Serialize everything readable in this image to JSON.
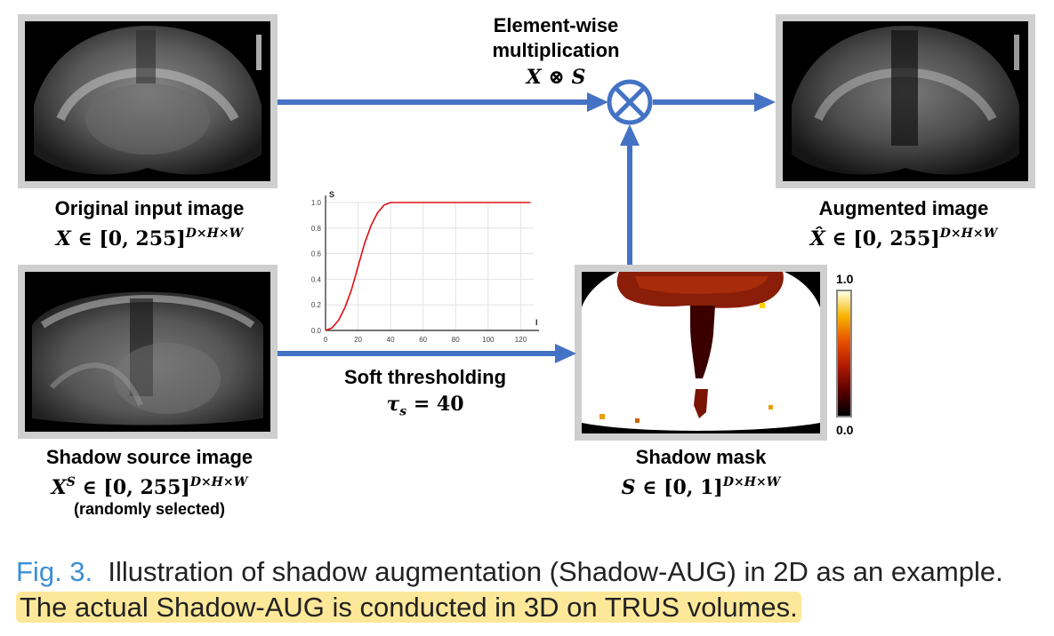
{
  "header": {
    "operation_title_line1": "Element-wise",
    "operation_title_line2": "multiplication",
    "operation_formula": "X ⊗ S"
  },
  "images": {
    "original": {
      "label": "Original input image",
      "formula_var": "X",
      "formula_rest": " ∈ [0, 255]",
      "formula_sup": "D×H×W"
    },
    "augmented": {
      "label": "Augmented image",
      "formula_var": "X̂",
      "formula_rest": " ∈ [0, 255]",
      "formula_sup": "D×H×W"
    },
    "shadow_source": {
      "label": "Shadow source image",
      "formula_var": "X",
      "formula_var_sup": "S",
      "formula_rest": " ∈ [0, 255]",
      "formula_sup": "D×H×W",
      "note": "(randomly selected)"
    },
    "shadow_mask": {
      "label": "Shadow mask",
      "formula_var": "S",
      "formula_rest": " ∈ [0, 1]",
      "formula_sup": "D×H×W"
    }
  },
  "thresholding": {
    "label": "Soft thresholding",
    "formula_var": "τ",
    "formula_sub": "s",
    "formula_rest": " = 40"
  },
  "colorbar": {
    "max_label": "1.0",
    "min_label": "0.0"
  },
  "chart_data": {
    "type": "line",
    "xlabel": "I",
    "ylabel": "S",
    "xlim": [
      0,
      128
    ],
    "ylim": [
      0,
      1.0
    ],
    "x_ticks": [
      "0",
      "20",
      "40",
      "60",
      "80",
      "100",
      "120"
    ],
    "y_ticks": [
      "0.0",
      "0.2",
      "0.4",
      "0.6",
      "0.8",
      "1.0"
    ],
    "grid": true,
    "series": [
      {
        "color": "#e01010",
        "x": [
          0,
          4,
          8,
          12,
          16,
          20,
          24,
          28,
          32,
          36,
          40,
          50,
          60,
          70,
          80,
          90,
          100,
          110,
          120,
          126
        ],
        "y": [
          0.0,
          0.02,
          0.08,
          0.18,
          0.32,
          0.5,
          0.68,
          0.82,
          0.92,
          0.98,
          1.0,
          1.0,
          1.0,
          1.0,
          1.0,
          1.0,
          1.0,
          1.0,
          1.0,
          1.0
        ]
      }
    ]
  },
  "caption": {
    "fig_label": "Fig. 3.",
    "text": "  Illustration of shadow augmentation (Shadow-AUG) in 2D as an example. ",
    "highlight": "The actual Shadow-AUG is conducted in 3D on TRUS volumes."
  }
}
